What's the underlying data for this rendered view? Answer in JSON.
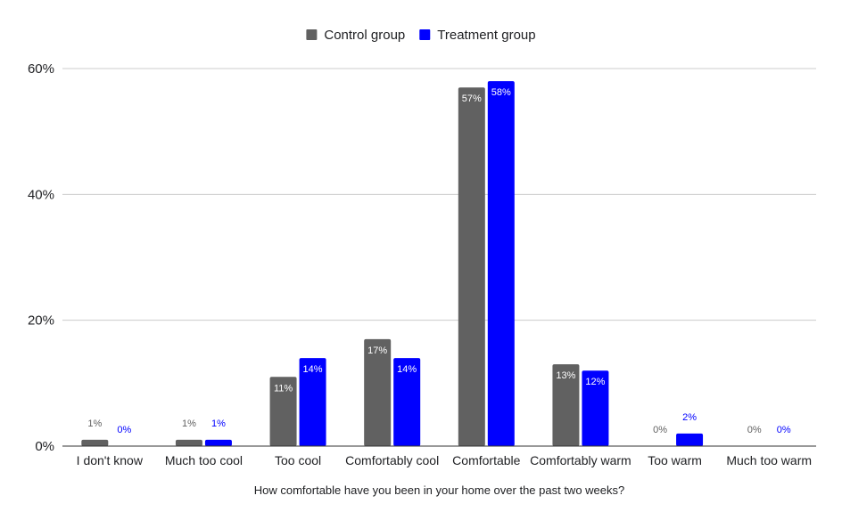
{
  "chart_data": {
    "type": "bar",
    "title": "",
    "xlabel": "How comfortable have you been in your home over the past two weeks?",
    "ylabel": "",
    "ylim": [
      0,
      60
    ],
    "yticks": [
      "0%",
      "20%",
      "40%",
      "60%"
    ],
    "grid": true,
    "legend_position": "top",
    "categories": [
      "I don't know",
      "Much too cool",
      "Too cool",
      "Comfortably cool",
      "Comfortable",
      "Comfortably warm",
      "Too warm",
      "Much too warm"
    ],
    "series": [
      {
        "name": "Control group",
        "color": "#616161",
        "values": [
          1,
          1,
          11,
          17,
          57,
          13,
          0,
          0
        ],
        "labels": [
          "1%",
          "1%",
          "11%",
          "17%",
          "57%",
          "13%",
          "0%",
          "0%"
        ]
      },
      {
        "name": "Treatment group",
        "color": "#0000ff",
        "values": [
          0,
          1,
          14,
          14,
          58,
          12,
          2,
          0
        ],
        "labels": [
          "0%",
          "1%",
          "14%",
          "14%",
          "58%",
          "12%",
          "2%",
          "0%"
        ]
      }
    ]
  }
}
